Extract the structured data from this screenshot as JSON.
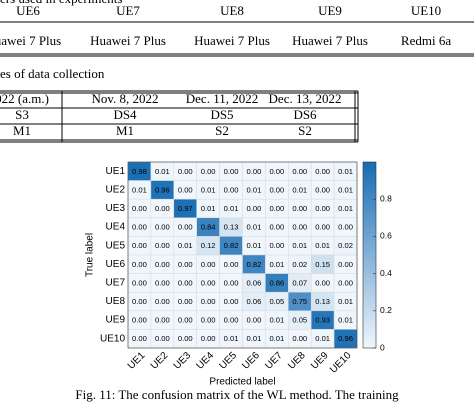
{
  "table1": {
    "caption": "ers used in experiments",
    "header": [
      "UE6",
      "UE7",
      "UE8",
      "UE9",
      "UE10"
    ],
    "rows": [
      [
        "uawei 7 Plus",
        "Huawei 7 Plus",
        "Huawei 7 Plus",
        "Huawei 7 Plus",
        "Redmi 6a"
      ]
    ]
  },
  "table2": {
    "caption": "es of data collection",
    "header": [
      "022 (a.m.)",
      "Nov. 8, 2022",
      "Dec. 11, 2022",
      "Dec. 13, 2022"
    ],
    "rows": [
      [
        "S3",
        "DS4",
        "DS5",
        "DS6"
      ],
      [
        "M1",
        "M1",
        "S2",
        "S2"
      ]
    ]
  },
  "figure": {
    "row_labels": [
      "UE1",
      "UE2",
      "UE3",
      "UE4",
      "UE5",
      "UE6",
      "UE7",
      "UE8",
      "UE9",
      "UE10"
    ],
    "col_labels": [
      "UE1",
      "UE2",
      "UE3",
      "UE4",
      "UE5",
      "UE6",
      "UE7",
      "UE8",
      "UE9",
      "UE10"
    ],
    "y_label": "True label",
    "x_label": "Predicted label",
    "matrix": [
      [
        "0.98",
        "0.01",
        "0.00",
        "0.00",
        "0.00",
        "0.00",
        "0.00",
        "0.00",
        "0.00",
        "0.01"
      ],
      [
        "0.01",
        "0.96",
        "0.00",
        "0.01",
        "0.00",
        "0.01",
        "0.00",
        "0.01",
        "0.00",
        "0.01"
      ],
      [
        "0.00",
        "0.00",
        "0.97",
        "0.01",
        "0.01",
        "0.00",
        "0.00",
        "0.00",
        "0.00",
        "0.01"
      ],
      [
        "0.00",
        "0.00",
        "0.00",
        "0.84",
        "0.13",
        "0.01",
        "0.00",
        "0.00",
        "0.00",
        "0.00"
      ],
      [
        "0.00",
        "0.00",
        "0.01",
        "0.12",
        "0.82",
        "0.01",
        "0.00",
        "0.01",
        "0.01",
        "0.02"
      ],
      [
        "0.00",
        "0.00",
        "0.00",
        "0.00",
        "0.00",
        "0.82",
        "0.01",
        "0.02",
        "0.15",
        "0.00"
      ],
      [
        "0.00",
        "0.00",
        "0.00",
        "0.00",
        "0.00",
        "0.06",
        "0.86",
        "0.07",
        "0.00",
        "0.00"
      ],
      [
        "0.00",
        "0.00",
        "0.00",
        "0.00",
        "0.00",
        "0.06",
        "0.05",
        "0.75",
        "0.13",
        "0.01"
      ],
      [
        "0.00",
        "0.00",
        "0.00",
        "0.00",
        "0.00",
        "0.00",
        "0.01",
        "0.05",
        "0.93",
        "0.01"
      ],
      [
        "0.00",
        "0.00",
        "0.00",
        "0.00",
        "0.01",
        "0.01",
        "0.01",
        "0.00",
        "0.01",
        "0.96"
      ]
    ],
    "colorbar": {
      "lim": [
        0,
        1
      ],
      "ticks": [
        0,
        0.2,
        0.4,
        0.6,
        0.8
      ]
    },
    "caption": "Fig. 11: The confusion matrix of the WL method. The training"
  }
}
